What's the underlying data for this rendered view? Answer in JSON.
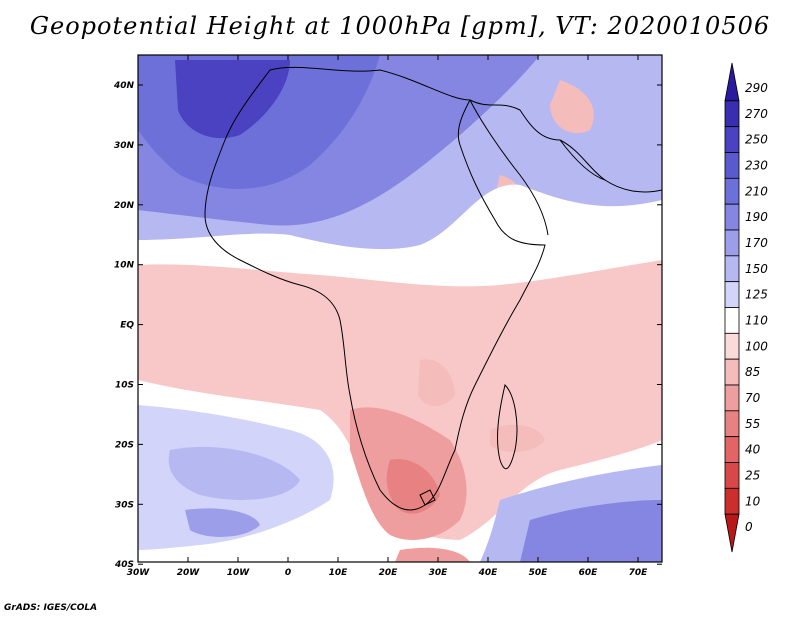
{
  "title": "Geopotential Height at 1000hPa [gpm], VT: 2020010506",
  "credit": "GrADS: IGES/COLA",
  "map": {
    "lon_labels": [
      "30W",
      "20W",
      "10W",
      "0",
      "10E",
      "20E",
      "30E",
      "40E",
      "50E",
      "60E",
      "70E"
    ],
    "lat_labels": [
      "40N",
      "30N",
      "20N",
      "10N",
      "EQ",
      "10S",
      "20S",
      "30S",
      "40S"
    ]
  },
  "colorbar": {
    "levels": [
      "290",
      "270",
      "250",
      "230",
      "210",
      "190",
      "170",
      "150",
      "125",
      "110",
      "100",
      "85",
      "70",
      "55",
      "40",
      "25",
      "10",
      "0"
    ],
    "colors": [
      "#2a1a9e",
      "#3a2eb0",
      "#4a42c0",
      "#5a5ace",
      "#6e70da",
      "#8486e2",
      "#9c9eea",
      "#b6b8f2",
      "#d2d4fa",
      "#ffffff",
      "#fbdada",
      "#f5bcbc",
      "#ee9e9e",
      "#e88282",
      "#e26464",
      "#d84848",
      "#cc2e2e",
      "#b81818"
    ]
  }
}
